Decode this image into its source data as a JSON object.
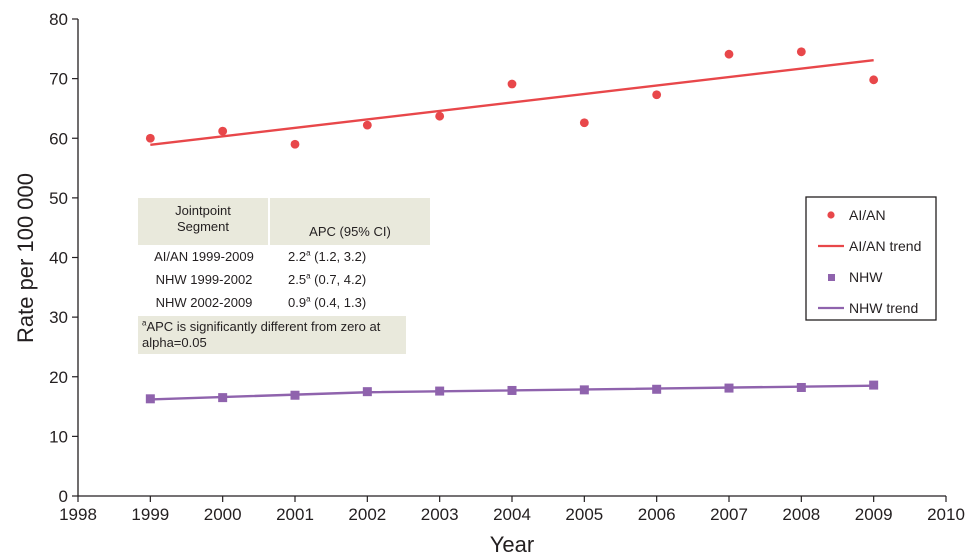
{
  "chart_data": {
    "type": "scatter",
    "title": "",
    "xlabel": "Year",
    "ylabel": "Rate per 100 000",
    "xlim": [
      1998,
      2010
    ],
    "ylim": [
      0,
      80
    ],
    "xticks": [
      1998,
      1999,
      2000,
      2001,
      2002,
      2003,
      2004,
      2005,
      2006,
      2007,
      2008,
      2009,
      2010
    ],
    "yticks": [
      0,
      10,
      20,
      30,
      40,
      50,
      60,
      70,
      80
    ],
    "grid": false,
    "legend_position": "right",
    "series": [
      {
        "name": "AI/AN",
        "kind": "scatter",
        "color": "#e8474a",
        "x": [
          1999,
          2000,
          2001,
          2002,
          2003,
          2004,
          2005,
          2006,
          2007,
          2008,
          2009
        ],
        "y": [
          60.0,
          61.2,
          59.0,
          62.2,
          63.7,
          69.1,
          62.6,
          67.3,
          74.1,
          74.5,
          69.8
        ]
      },
      {
        "name": "AI/AN trend",
        "kind": "line",
        "color": "#e8474a",
        "x": [
          1999,
          2009
        ],
        "y": [
          58.9,
          73.1
        ]
      },
      {
        "name": "NHW",
        "kind": "scatter",
        "color": "#8f63ad",
        "x": [
          1999,
          2000,
          2001,
          2002,
          2003,
          2004,
          2005,
          2006,
          2007,
          2008,
          2009
        ],
        "y": [
          16.3,
          16.5,
          16.9,
          17.5,
          17.6,
          17.7,
          17.8,
          17.9,
          18.1,
          18.2,
          18.6
        ]
      },
      {
        "name": "NHW trend",
        "kind": "line",
        "color": "#8f63ad",
        "x": [
          1999,
          2002,
          2009
        ],
        "y": [
          16.2,
          17.4,
          18.5
        ]
      }
    ]
  },
  "table": {
    "header_col1_line1": "Jointpoint",
    "header_col1_line2": "Segment",
    "header_col2": "APC (95% CI)",
    "rows": [
      {
        "segment": "AI/AN 1999-2009",
        "apc": "2.2",
        "sup": "a",
        "ci": " (1.2, 3.2)"
      },
      {
        "segment": "NHW 1999-2002",
        "apc": "2.5",
        "sup": "a",
        "ci": " (0.7, 4.2)"
      },
      {
        "segment": "NHW 2002-2009",
        "apc": "0.9",
        "sup": "a",
        "ci": " (0.4, 1.3)"
      }
    ],
    "footnote_mark": "a",
    "footnote_line1": "APC is significantly different from zero at",
    "footnote_line2": "alpha=0.05"
  }
}
